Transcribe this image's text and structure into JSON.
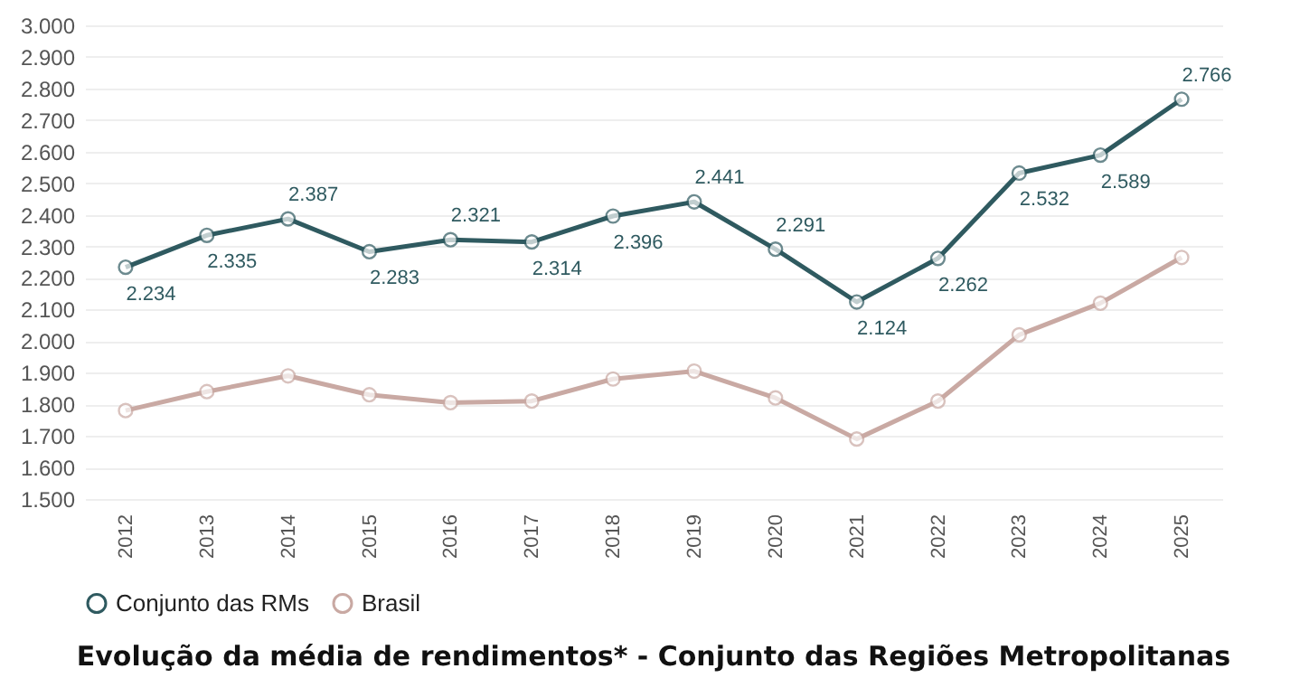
{
  "chart_data": {
    "type": "line",
    "title": "Evolução da média de rendimentos* - Conjunto das Regiões Metropolitanas",
    "categories": [
      "2012",
      "2013",
      "2014",
      "2015",
      "2016",
      "2017",
      "2018",
      "2019",
      "2020",
      "2021",
      "2022",
      "2023",
      "2024",
      "2025"
    ],
    "series": [
      {
        "name": "Conjunto das RMs",
        "color": "#2f5a60",
        "values": [
          2234,
          2335,
          2387,
          2283,
          2321,
          2314,
          2396,
          2441,
          2291,
          2124,
          2262,
          2532,
          2589,
          2766
        ],
        "value_labels": [
          "2.234",
          "2.335",
          "2.387",
          "2.283",
          "2.321",
          "2.314",
          "2.396",
          "2.441",
          "2.291",
          "2.124",
          "2.262",
          "2.532",
          "2.589",
          "2.766"
        ]
      },
      {
        "name": "Brasil",
        "color": "#c9a9a3",
        "values": [
          1780,
          1840,
          1890,
          1830,
          1805,
          1810,
          1880,
          1905,
          1820,
          1690,
          1810,
          2020,
          2120,
          2265
        ]
      }
    ],
    "ylim": [
      1500,
      3000
    ],
    "yticks": [
      {
        "value": 1500,
        "label": "1.500"
      },
      {
        "value": 1600,
        "label": "1.600"
      },
      {
        "value": 1700,
        "label": "1.700"
      },
      {
        "value": 1800,
        "label": "1.800"
      },
      {
        "value": 1900,
        "label": "1.900"
      },
      {
        "value": 2000,
        "label": "2.000"
      },
      {
        "value": 2100,
        "label": "2.100"
      },
      {
        "value": 2200,
        "label": "2.200"
      },
      {
        "value": 2300,
        "label": "2.300"
      },
      {
        "value": 2400,
        "label": "2.400"
      },
      {
        "value": 2500,
        "label": "2.500"
      },
      {
        "value": 2600,
        "label": "2.600"
      },
      {
        "value": 2700,
        "label": "2.700"
      },
      {
        "value": 2800,
        "label": "2.800"
      },
      {
        "value": 2900,
        "label": "2.900"
      },
      {
        "value": 3000,
        "label": "3.000"
      }
    ],
    "grid": "y",
    "legend": "bottom",
    "marker": "circle",
    "line_style": "solid"
  }
}
